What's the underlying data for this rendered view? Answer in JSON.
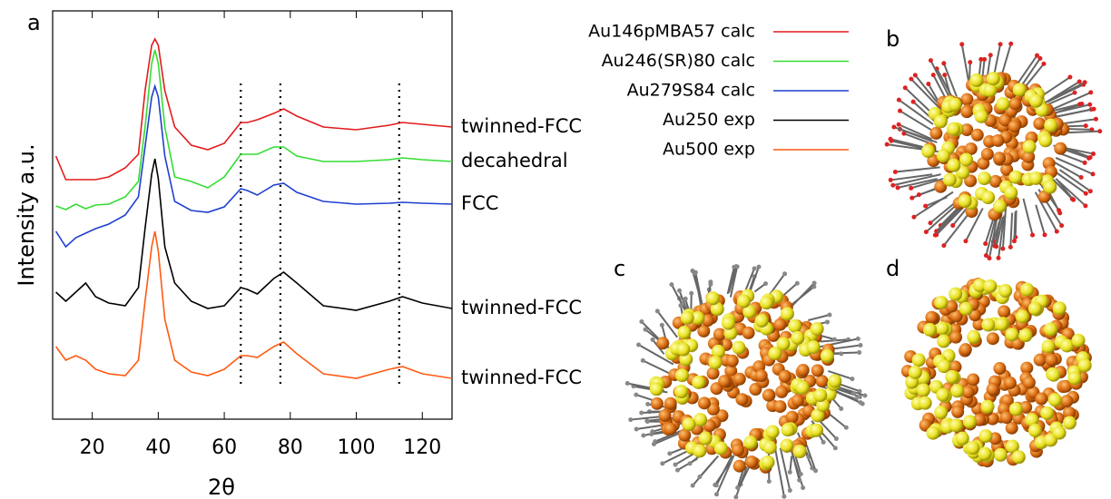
{
  "chart_data": {
    "type": "line",
    "xlabel": "2θ",
    "ylabel": "Intensity a.u.",
    "panel_labels": [
      "a",
      "b",
      "c",
      "d"
    ],
    "x": [
      9,
      12,
      15,
      18,
      21,
      25,
      30,
      34,
      36,
      38,
      39,
      40,
      42,
      45,
      50,
      55,
      60,
      65,
      67,
      70,
      75,
      78,
      82,
      90,
      100,
      110,
      114,
      120,
      129
    ],
    "xlim": [
      8,
      129
    ],
    "xticks": [
      20,
      40,
      60,
      80,
      100,
      120
    ],
    "ylim": [
      0,
      450
    ],
    "vlines": [
      65,
      77,
      113
    ],
    "series": [
      {
        "name": "Au146pMBA57 calc",
        "label": "twinned-FCC",
        "color": "#e41a1c",
        "values": [
          290,
          264,
          264,
          264,
          264,
          267,
          277,
          292,
          362,
          412,
          419,
          412,
          362,
          322,
          302,
          297,
          304,
          327,
          327,
          330,
          337,
          342,
          334,
          322,
          319,
          324,
          327,
          325,
          322
        ]
      },
      {
        "name": "Au246(SR)80 calc",
        "label": "decahedral",
        "color": "#33dd33",
        "values": [
          235,
          231,
          237,
          232,
          236,
          237,
          245,
          262,
          322,
          392,
          407,
          392,
          322,
          267,
          262,
          255,
          267,
          292,
          292,
          292,
          300,
          300,
          290,
          284,
          284,
          286,
          288,
          286,
          284
        ]
      },
      {
        "name": "Au279S84 calc",
        "label": "FCC",
        "color": "#1f3fcf",
        "values": [
          207,
          190,
          200,
          205,
          210,
          215,
          225,
          245,
          300,
          355,
          367,
          355,
          290,
          240,
          230,
          228,
          234,
          254,
          252,
          247,
          258,
          260,
          250,
          240,
          237,
          238,
          239,
          238,
          237
        ]
      },
      {
        "name": "Au250 exp",
        "label": "twinned-FCC",
        "color": "#000000",
        "values": [
          140,
          130,
          140,
          150,
          135,
          128,
          125,
          145,
          210,
          270,
          287,
          265,
          190,
          150,
          130,
          122,
          125,
          145,
          143,
          138,
          155,
          162,
          150,
          125,
          120,
          130,
          135,
          128,
          122
        ]
      },
      {
        "name": "Au500 exp",
        "label": "twinned-FCC",
        "color": "#ff5a12",
        "values": [
          80,
          65,
          70,
          65,
          55,
          50,
          48,
          65,
          130,
          190,
          207,
          185,
          110,
          65,
          52,
          48,
          55,
          70,
          70,
          68,
          80,
          85,
          72,
          50,
          45,
          55,
          58,
          50,
          45
        ]
      }
    ]
  }
}
